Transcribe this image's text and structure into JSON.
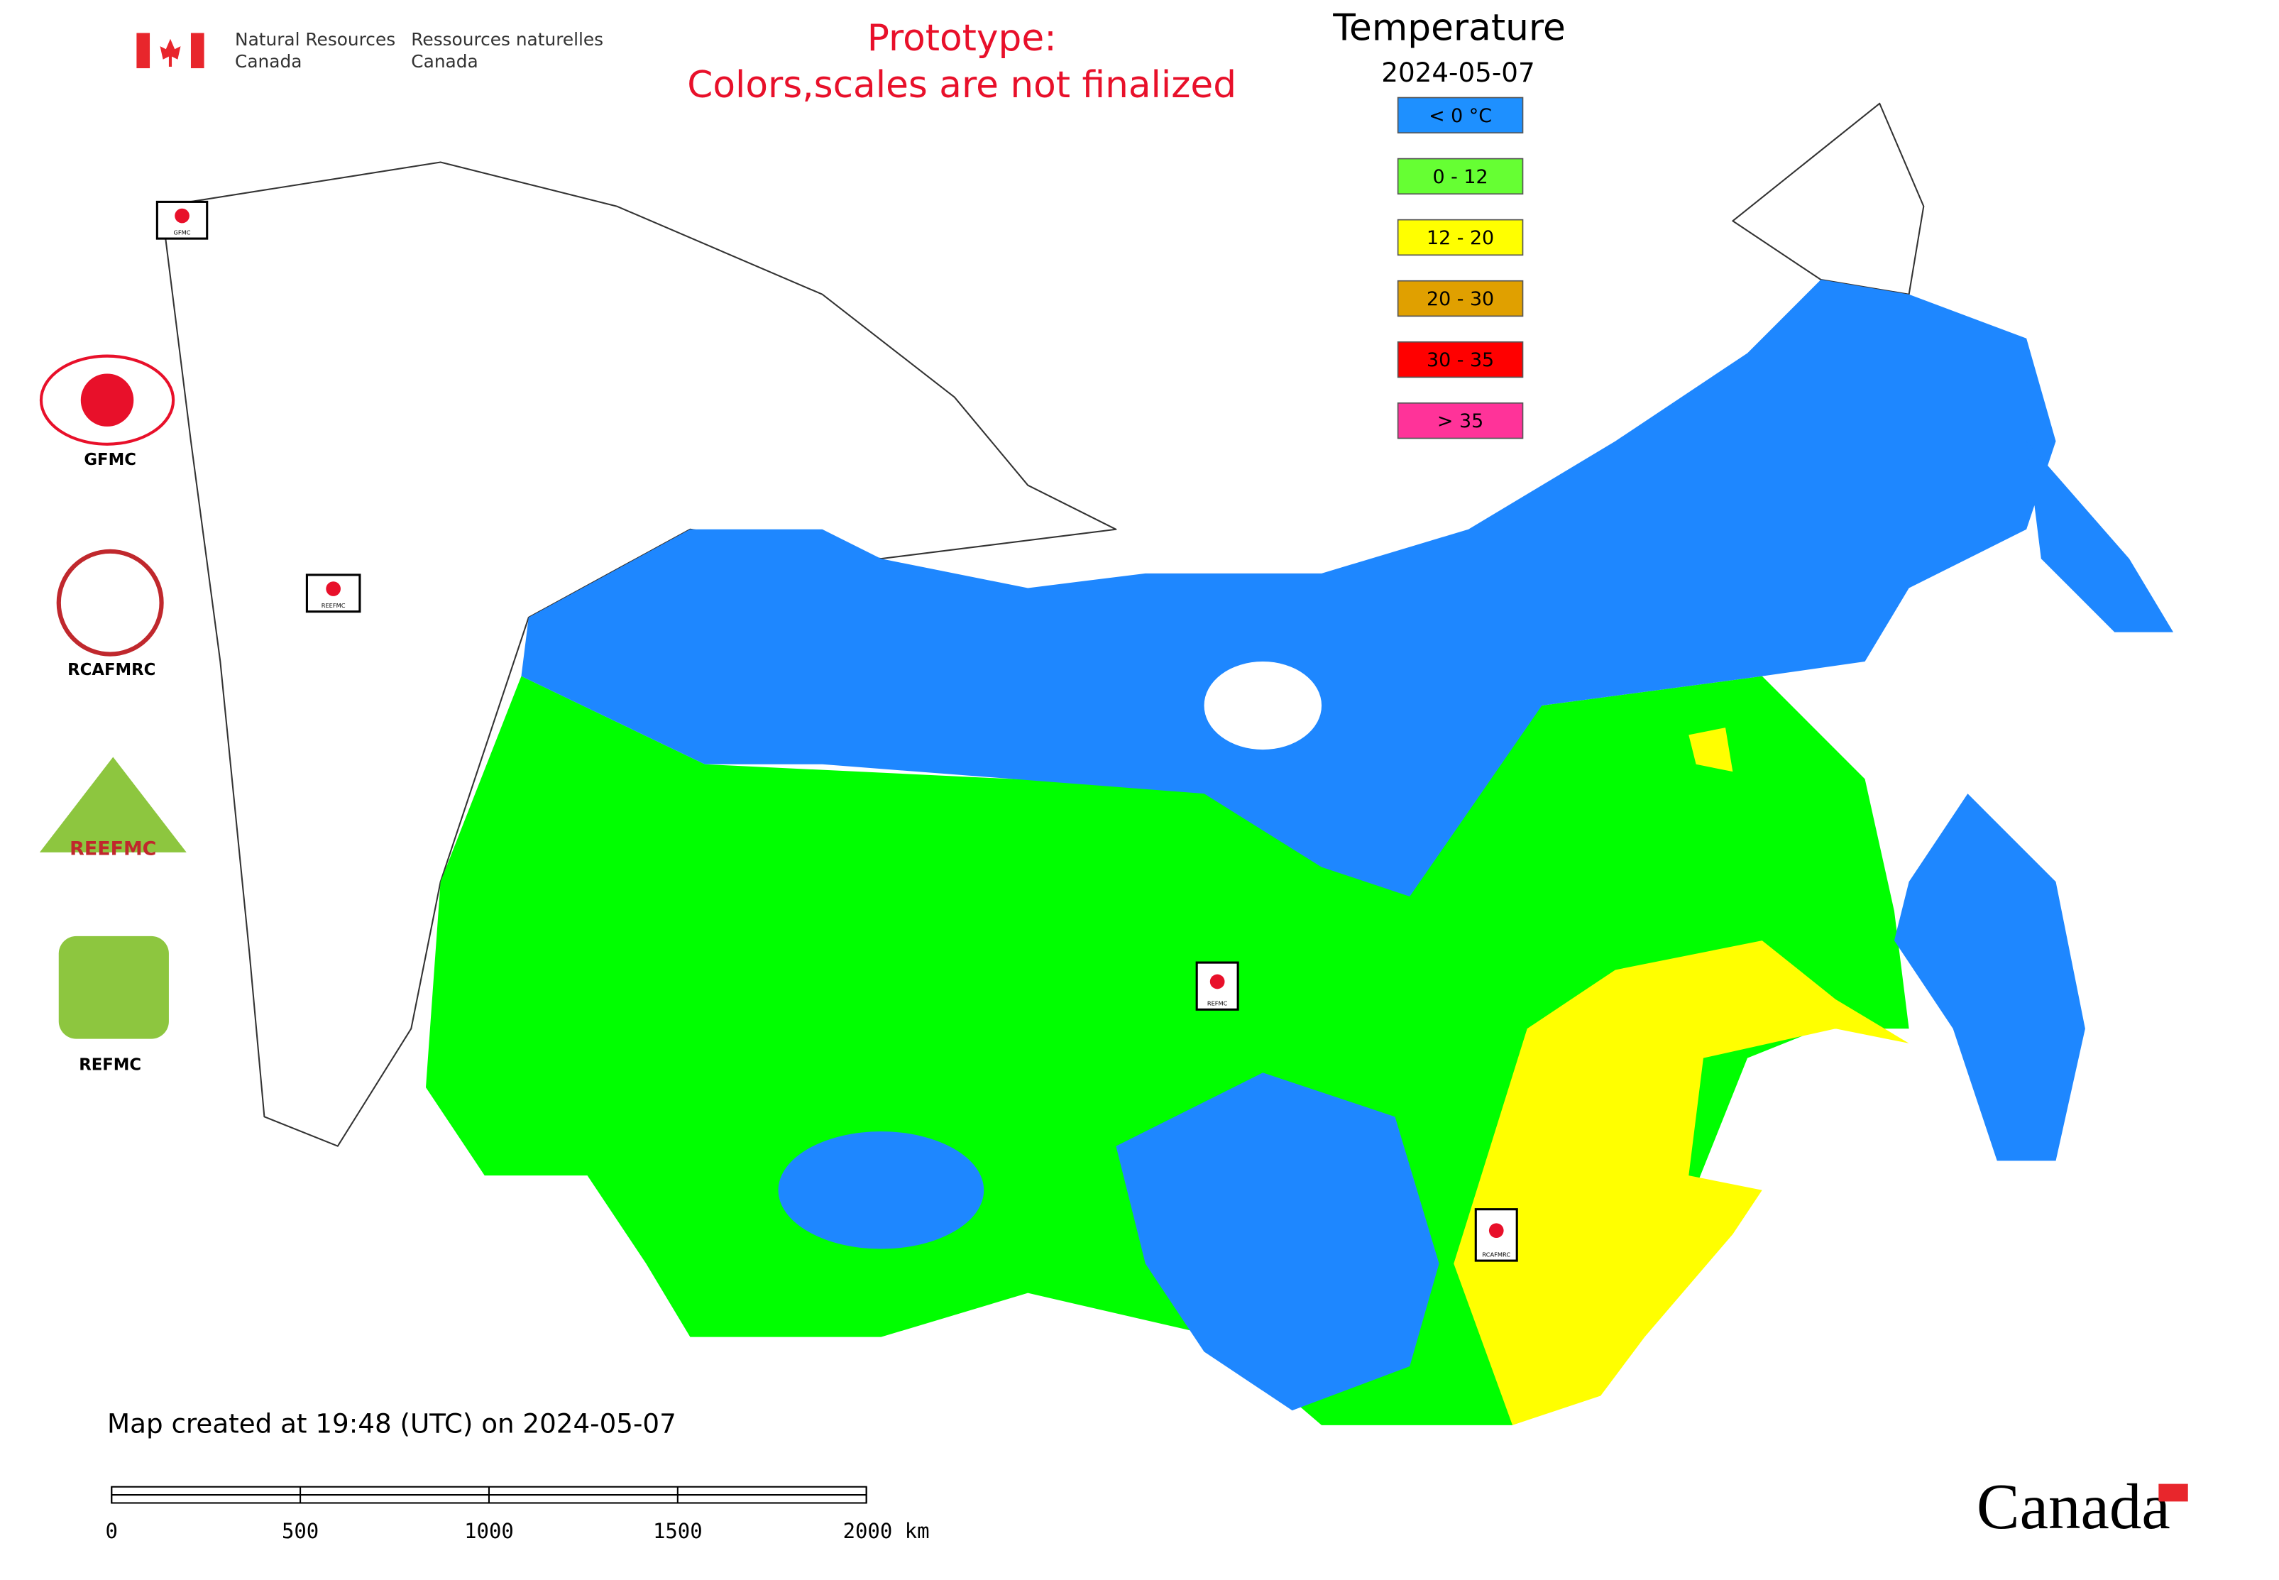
{
  "header": {
    "agency_en": [
      "Natural Resources",
      "Canada"
    ],
    "agency_fr": [
      "Ressources naturelles",
      "Canada"
    ],
    "notice": [
      "Prototype:",
      "Colors,scales are not finalized"
    ]
  },
  "legend": {
    "title": "Temperature",
    "date": "2024-05-07",
    "items": [
      {
        "label": "< 0 °C",
        "color": "#1e90ff"
      },
      {
        "label": "0 - 12",
        "color": "#66ff33"
      },
      {
        "label": "12 - 20",
        "color": "#ffff00"
      },
      {
        "label": "20 - 30",
        "color": "#e0a000"
      },
      {
        "label": "30 - 35",
        "color": "#ff0000"
      },
      {
        "label": "> 35",
        "color": "#ff3399"
      }
    ]
  },
  "logos": [
    {
      "label": "GFMC"
    },
    {
      "label": "RCAFMRC"
    },
    {
      "label": "REEFMC"
    },
    {
      "label": "REFMC"
    }
  ],
  "map_markers": [
    "GFMC",
    "REEFMC",
    "REFMC",
    "RCAFMRC"
  ],
  "footer": {
    "created": "Map created at 19:48 (UTC) on 2024-05-07",
    "wordmark": "Canada"
  },
  "scale_bar": {
    "labels": [
      "0",
      "500",
      "1000",
      "1500",
      "2000 km"
    ]
  }
}
